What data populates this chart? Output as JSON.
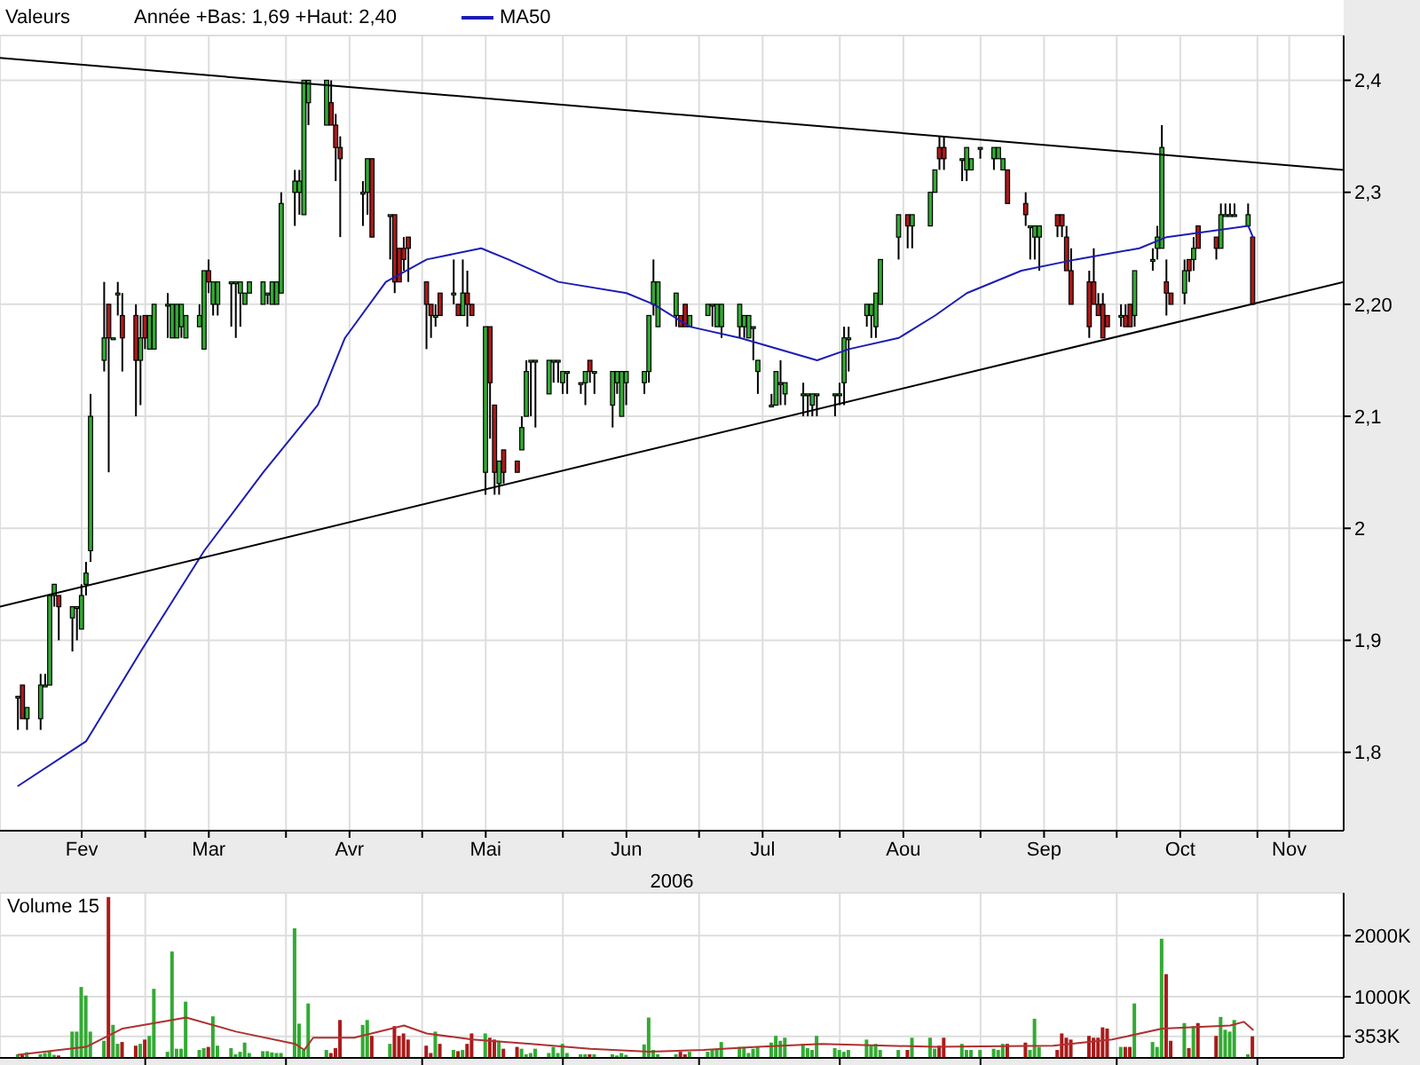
{
  "chart_data": [
    {
      "type": "candlestick",
      "title": "Valeurs",
      "subtitle": "Année +Bas: 1,69 +Haut: 2,40",
      "xlabel": "2006",
      "x": [
        "2006-02-01",
        "2006-02-02",
        "2006-02-03",
        "2006-02-06",
        "2006-02-07",
        "2006-02-08",
        "2006-02-09",
        "2006-02-10",
        "2006-02-13",
        "2006-02-14",
        "2006-02-15",
        "2006-02-16",
        "2006-02-17",
        "2006-02-20",
        "2006-02-21",
        "2006-02-22",
        "2006-02-23",
        "2006-02-24",
        "2006-02-27",
        "2006-02-28",
        "2006-03-01",
        "2006-03-02",
        "2006-03-03",
        "2006-03-06",
        "2006-03-07",
        "2006-03-08",
        "2006-03-09",
        "2006-03-10",
        "2006-03-13",
        "2006-03-14",
        "2006-03-15",
        "2006-03-16",
        "2006-03-17",
        "2006-03-20",
        "2006-03-21",
        "2006-03-22",
        "2006-03-23",
        "2006-03-24",
        "2006-03-27",
        "2006-03-28",
        "2006-03-29",
        "2006-03-30",
        "2006-03-31",
        "2006-04-03",
        "2006-04-04",
        "2006-04-05",
        "2006-04-06",
        "2006-04-10",
        "2006-04-11",
        "2006-04-12",
        "2006-04-13",
        "2006-04-18",
        "2006-04-19",
        "2006-04-20",
        "2006-04-24",
        "2006-04-25",
        "2006-04-26",
        "2006-04-27",
        "2006-04-28",
        "2006-05-02",
        "2006-05-03",
        "2006-05-04",
        "2006-05-05",
        "2006-05-08",
        "2006-05-09",
        "2006-05-10",
        "2006-05-11",
        "2006-05-12",
        "2006-05-15",
        "2006-05-16",
        "2006-05-17",
        "2006-05-18",
        "2006-05-19",
        "2006-05-22",
        "2006-05-23",
        "2006-05-24",
        "2006-05-25",
        "2006-05-26",
        "2006-05-29",
        "2006-05-30",
        "2006-05-31",
        "2006-06-01",
        "2006-06-02",
        "2006-06-05",
        "2006-06-06",
        "2006-06-07",
        "2006-06-08",
        "2006-06-12",
        "2006-06-13",
        "2006-06-14",
        "2006-06-15",
        "2006-06-19",
        "2006-06-20",
        "2006-06-21",
        "2006-06-22",
        "2006-06-26",
        "2006-06-27",
        "2006-06-28",
        "2006-06-29",
        "2006-07-03",
        "2006-07-04",
        "2006-07-05",
        "2006-07-06",
        "2006-07-10",
        "2006-07-11",
        "2006-07-12",
        "2006-07-13",
        "2006-07-14",
        "2006-07-17",
        "2006-07-18",
        "2006-07-19",
        "2006-07-20",
        "2006-07-24",
        "2006-07-25",
        "2006-07-26",
        "2006-07-27",
        "2006-07-31",
        "2006-08-01",
        "2006-08-02",
        "2006-08-03",
        "2006-08-07",
        "2006-08-08",
        "2006-08-09",
        "2006-08-10",
        "2006-08-14",
        "2006-08-16",
        "2006-08-17",
        "2006-08-21",
        "2006-08-22",
        "2006-08-23",
        "2006-08-24",
        "2006-08-28",
        "2006-08-29",
        "2006-08-30",
        "2006-09-01",
        "2006-09-04",
        "2006-09-05",
        "2006-09-06",
        "2006-09-07",
        "2006-09-11",
        "2006-09-12",
        "2006-09-13",
        "2006-09-14",
        "2006-09-18",
        "2006-09-19",
        "2006-09-20",
        "2006-09-21",
        "2006-09-25",
        "2006-09-26",
        "2006-09-27",
        "2006-09-28",
        "2006-09-29",
        "2006-10-02",
        "2006-10-03",
        "2006-10-04",
        "2006-10-05",
        "2006-10-09",
        "2006-10-10",
        "2006-10-11",
        "2006-10-12",
        "2006-10-13",
        "2006-10-16",
        "2006-10-17",
        "2006-10-18",
        "2006-10-19",
        "2006-10-23",
        "2006-10-24",
        "2006-10-25",
        "2006-10-26",
        "2006-10-27",
        "2006-10-30",
        "2006-10-31"
      ],
      "ohlc": [
        [
          1.85,
          1.85,
          1.82,
          1.85
        ],
        [
          1.86,
          1.86,
          1.83,
          1.83
        ],
        [
          1.83,
          1.84,
          1.82,
          1.84
        ],
        [
          1.83,
          1.87,
          1.82,
          1.86
        ],
        [
          1.86,
          1.87,
          1.86,
          1.86
        ],
        [
          1.86,
          1.94,
          1.86,
          1.94
        ],
        [
          1.94,
          1.95,
          1.93,
          1.95
        ],
        [
          1.94,
          1.94,
          1.9,
          1.93
        ],
        [
          1.92,
          1.93,
          1.89,
          1.93
        ],
        [
          1.93,
          1.93,
          1.9,
          1.93
        ],
        [
          1.91,
          1.95,
          1.91,
          1.94
        ],
        [
          1.95,
          1.97,
          1.94,
          1.96
        ],
        [
          1.98,
          2.12,
          1.97,
          2.1
        ],
        [
          2.15,
          2.22,
          2.14,
          2.17
        ],
        [
          2.2,
          2.2,
          2.05,
          2.17
        ],
        [
          2.17,
          2.17,
          2.17,
          2.17
        ],
        [
          2.21,
          2.22,
          2.19,
          2.21
        ],
        [
          2.19,
          2.21,
          2.14,
          2.17
        ],
        [
          2.19,
          2.2,
          2.1,
          2.15
        ],
        [
          2.15,
          2.19,
          2.11,
          2.17
        ],
        [
          2.19,
          2.19,
          2.16,
          2.17
        ],
        [
          2.16,
          2.19,
          2.16,
          2.19
        ],
        [
          2.16,
          2.2,
          2.16,
          2.2
        ],
        [
          2.2,
          2.21,
          2.17,
          2.2
        ],
        [
          2.17,
          2.2,
          2.17,
          2.2
        ],
        [
          2.17,
          2.2,
          2.17,
          2.2
        ],
        [
          2.18,
          2.2,
          2.17,
          2.2
        ],
        [
          2.17,
          2.19,
          2.17,
          2.19
        ],
        [
          2.18,
          2.2,
          2.18,
          2.19
        ],
        [
          2.16,
          2.23,
          2.16,
          2.23
        ],
        [
          2.23,
          2.24,
          2.21,
          2.22
        ],
        [
          2.2,
          2.22,
          2.19,
          2.22
        ],
        [
          2.2,
          2.22,
          2.19,
          2.22
        ],
        [
          2.22,
          2.22,
          2.18,
          2.22
        ],
        [
          2.22,
          2.22,
          2.17,
          2.22
        ],
        [
          2.21,
          2.22,
          2.18,
          2.22
        ],
        [
          2.2,
          2.21,
          2.2,
          2.21
        ],
        [
          2.21,
          2.22,
          2.21,
          2.22
        ],
        [
          2.2,
          2.22,
          2.2,
          2.22
        ],
        [
          2.21,
          2.21,
          2.2,
          2.21
        ],
        [
          2.2,
          2.22,
          2.2,
          2.22
        ],
        [
          2.2,
          2.22,
          2.2,
          2.22
        ],
        [
          2.21,
          2.3,
          2.21,
          2.29
        ],
        [
          2.3,
          2.32,
          2.27,
          2.31
        ],
        [
          2.3,
          2.32,
          2.28,
          2.31
        ],
        [
          2.28,
          2.4,
          2.28,
          2.4
        ],
        [
          2.38,
          2.4,
          2.36,
          2.4
        ],
        [
          2.36,
          2.4,
          2.36,
          2.4
        ],
        [
          2.38,
          2.4,
          2.36,
          2.36
        ],
        [
          2.36,
          2.37,
          2.31,
          2.34
        ],
        [
          2.34,
          2.35,
          2.26,
          2.33
        ],
        [
          2.3,
          2.31,
          2.27,
          2.3
        ],
        [
          2.3,
          2.33,
          2.28,
          2.33
        ],
        [
          2.33,
          2.33,
          2.26,
          2.26
        ],
        [
          2.28,
          2.28,
          2.24,
          2.28
        ],
        [
          2.28,
          2.28,
          2.21,
          2.22
        ],
        [
          2.25,
          2.25,
          2.22,
          2.22
        ],
        [
          2.25,
          2.26,
          2.23,
          2.24
        ],
        [
          2.26,
          2.26,
          2.22,
          2.25
        ],
        [
          2.22,
          2.22,
          2.16,
          2.2
        ],
        [
          2.2,
          2.2,
          2.17,
          2.19
        ],
        [
          2.19,
          2.2,
          2.18,
          2.19
        ],
        [
          2.21,
          2.21,
          2.19,
          2.19
        ],
        [
          2.21,
          2.24,
          2.2,
          2.21
        ],
        [
          2.2,
          2.2,
          2.19,
          2.19
        ],
        [
          2.19,
          2.24,
          2.19,
          2.21
        ],
        [
          2.21,
          2.23,
          2.18,
          2.2
        ],
        [
          2.2,
          2.2,
          2.19,
          2.19
        ],
        [
          2.05,
          2.18,
          2.03,
          2.18
        ],
        [
          2.18,
          2.18,
          2.08,
          2.13
        ],
        [
          2.11,
          2.11,
          2.03,
          2.05
        ],
        [
          2.04,
          2.06,
          2.03,
          2.06
        ],
        [
          2.07,
          2.07,
          2.04,
          2.05
        ],
        [
          2.06,
          2.06,
          2.05,
          2.05
        ],
        [
          2.07,
          2.1,
          2.07,
          2.09
        ],
        [
          2.1,
          2.15,
          2.1,
          2.14
        ],
        [
          2.15,
          2.15,
          2.1,
          2.15
        ],
        [
          2.15,
          2.15,
          2.09,
          2.15
        ],
        [
          2.12,
          2.15,
          2.12,
          2.15
        ],
        [
          2.15,
          2.15,
          2.13,
          2.15
        ],
        [
          2.15,
          2.15,
          2.13,
          2.15
        ],
        [
          2.13,
          2.14,
          2.12,
          2.14
        ],
        [
          2.14,
          2.14,
          2.12,
          2.14
        ],
        [
          2.13,
          2.13,
          2.12,
          2.13
        ],
        [
          2.13,
          2.14,
          2.11,
          2.14
        ],
        [
          2.15,
          2.15,
          2.13,
          2.14
        ],
        [
          2.14,
          2.14,
          2.12,
          2.14
        ],
        [
          2.11,
          2.14,
          2.09,
          2.14
        ],
        [
          2.13,
          2.14,
          2.12,
          2.14
        ],
        [
          2.1,
          2.14,
          2.1,
          2.14
        ],
        [
          2.13,
          2.14,
          2.11,
          2.14
        ],
        [
          2.13,
          2.14,
          2.12,
          2.14
        ],
        [
          2.14,
          2.19,
          2.13,
          2.19
        ],
        [
          2.2,
          2.24,
          2.19,
          2.22
        ],
        [
          2.18,
          2.22,
          2.18,
          2.22
        ],
        [
          2.19,
          2.21,
          2.18,
          2.21
        ],
        [
          2.19,
          2.19,
          2.18,
          2.18
        ],
        [
          2.2,
          2.2,
          2.18,
          2.18
        ],
        [
          2.18,
          2.19,
          2.18,
          2.19
        ],
        [
          2.19,
          2.2,
          2.19,
          2.2
        ],
        [
          2.2,
          2.2,
          2.18,
          2.2
        ],
        [
          2.18,
          2.2,
          2.18,
          2.2
        ],
        [
          2.18,
          2.2,
          2.17,
          2.2
        ],
        [
          2.18,
          2.2,
          2.17,
          2.2
        ],
        [
          2.18,
          2.19,
          2.17,
          2.19
        ],
        [
          2.17,
          2.19,
          2.17,
          2.19
        ],
        [
          2.18,
          2.18,
          2.15,
          2.18
        ],
        [
          2.14,
          2.15,
          2.12,
          2.15
        ],
        [
          2.11,
          2.12,
          2.11,
          2.11
        ],
        [
          2.11,
          2.14,
          2.11,
          2.14
        ],
        [
          2.13,
          2.15,
          2.11,
          2.13
        ],
        [
          2.12,
          2.13,
          2.11,
          2.13
        ],
        [
          2.12,
          2.13,
          2.1,
          2.12
        ],
        [
          2.12,
          2.12,
          2.1,
          2.12
        ],
        [
          2.11,
          2.12,
          2.1,
          2.12
        ],
        [
          2.12,
          2.12,
          2.1,
          2.12
        ],
        [
          2.12,
          2.12,
          2.1,
          2.12
        ],
        [
          2.12,
          2.13,
          2.11,
          2.12
        ],
        [
          2.13,
          2.18,
          2.11,
          2.17
        ],
        [
          2.17,
          2.18,
          2.14,
          2.17
        ],
        [
          2.19,
          2.2,
          2.18,
          2.2
        ],
        [
          2.19,
          2.2,
          2.17,
          2.2
        ],
        [
          2.18,
          2.21,
          2.17,
          2.21
        ],
        [
          2.2,
          2.24,
          2.2,
          2.24
        ],
        [
          2.26,
          2.28,
          2.24,
          2.28
        ],
        [
          2.28,
          2.28,
          2.25,
          2.27
        ],
        [
          2.27,
          2.28,
          2.25,
          2.28
        ],
        [
          2.27,
          2.3,
          2.27,
          2.3
        ],
        [
          2.3,
          2.32,
          2.3,
          2.32
        ],
        [
          2.34,
          2.35,
          2.32,
          2.33
        ],
        [
          2.34,
          2.35,
          2.32,
          2.33
        ],
        [
          2.33,
          2.33,
          2.31,
          2.33
        ],
        [
          2.32,
          2.34,
          2.31,
          2.34
        ],
        [
          2.32,
          2.33,
          2.32,
          2.33
        ],
        [
          2.34,
          2.34,
          2.33,
          2.34
        ],
        [
          2.33,
          2.34,
          2.32,
          2.34
        ],
        [
          2.33,
          2.34,
          2.33,
          2.34
        ],
        [
          2.32,
          2.33,
          2.32,
          2.33
        ],
        [
          2.32,
          2.32,
          2.29,
          2.29
        ],
        [
          2.29,
          2.3,
          2.27,
          2.28
        ],
        [
          2.27,
          2.27,
          2.24,
          2.27
        ],
        [
          2.26,
          2.27,
          2.24,
          2.27
        ],
        [
          2.26,
          2.27,
          2.23,
          2.27
        ],
        [
          2.28,
          2.28,
          2.26,
          2.27
        ],
        [
          2.28,
          2.28,
          2.26,
          2.27
        ],
        [
          2.26,
          2.27,
          2.23,
          2.23
        ],
        [
          2.23,
          2.25,
          2.2,
          2.2
        ],
        [
          2.22,
          2.23,
          2.17,
          2.18
        ],
        [
          2.22,
          2.25,
          2.2,
          2.2
        ],
        [
          2.2,
          2.21,
          2.19,
          2.19
        ],
        [
          2.2,
          2.21,
          2.17,
          2.17
        ],
        [
          2.19,
          2.19,
          2.18,
          2.18
        ],
        [
          2.19,
          2.2,
          2.18,
          2.19
        ],
        [
          2.19,
          2.2,
          2.18,
          2.18
        ],
        [
          2.2,
          2.2,
          2.18,
          2.18
        ],
        [
          2.19,
          2.23,
          2.18,
          2.23
        ],
        [
          2.24,
          2.25,
          2.23,
          2.24
        ],
        [
          2.25,
          2.27,
          2.24,
          2.26
        ],
        [
          2.25,
          2.36,
          2.25,
          2.34
        ],
        [
          2.22,
          2.24,
          2.19,
          2.21
        ],
        [
          2.21,
          2.21,
          2.2,
          2.2
        ],
        [
          2.21,
          2.24,
          2.2,
          2.23
        ],
        [
          2.24,
          2.24,
          2.22,
          2.23
        ],
        [
          2.24,
          2.26,
          2.23,
          2.25
        ],
        [
          2.27,
          2.27,
          2.25,
          2.25
        ],
        [
          2.26,
          2.26,
          2.24,
          2.25
        ],
        [
          2.25,
          2.29,
          2.25,
          2.28
        ],
        [
          2.28,
          2.29,
          2.28,
          2.28
        ],
        [
          2.28,
          2.29,
          2.28,
          2.28
        ],
        [
          2.28,
          2.29,
          2.28,
          2.28
        ],
        [
          2.27,
          2.29,
          2.27,
          2.28
        ],
        [
          2.26,
          2.26,
          2.2,
          2.2
        ]
      ],
      "colors": [
        "#33aa33",
        "#aa1a1a",
        "#33aa33",
        "#33aa33",
        "#33aa33",
        "#33aa33",
        "#33aa33",
        "#aa1a1a",
        "#33aa33",
        "#33aa33",
        "#33aa33",
        "#33aa33",
        "#33aa33",
        "#33aa33",
        "#aa1a1a",
        "#33aa33",
        "#33aa33",
        "#aa1a1a",
        "#aa1a1a",
        "#33aa33",
        "#aa1a1a",
        "#33aa33",
        "#33aa33",
        "#33aa33",
        "#33aa33",
        "#33aa33",
        "#33aa33",
        "#33aa33",
        "#33aa33",
        "#33aa33",
        "#aa1a1a",
        "#33aa33",
        "#33aa33",
        "#33aa33",
        "#33aa33",
        "#33aa33",
        "#33aa33",
        "#33aa33",
        "#33aa33",
        "#33aa33",
        "#33aa33",
        "#33aa33",
        "#33aa33",
        "#33aa33",
        "#33aa33",
        "#33aa33",
        "#33aa33",
        "#33aa33",
        "#aa1a1a",
        "#aa1a1a",
        "#aa1a1a",
        "#33aa33",
        "#33aa33",
        "#aa1a1a",
        "#33aa33",
        "#aa1a1a",
        "#aa1a1a",
        "#aa1a1a",
        "#aa1a1a",
        "#aa1a1a",
        "#aa1a1a",
        "#33aa33",
        "#aa1a1a",
        "#33aa33",
        "#aa1a1a",
        "#33aa33",
        "#aa1a1a",
        "#aa1a1a",
        "#33aa33",
        "#aa1a1a",
        "#aa1a1a",
        "#33aa33",
        "#aa1a1a",
        "#aa1a1a",
        "#33aa33",
        "#33aa33",
        "#33aa33",
        "#33aa33",
        "#33aa33",
        "#33aa33",
        "#33aa33",
        "#33aa33",
        "#33aa33",
        "#33aa33",
        "#33aa33",
        "#aa1a1a",
        "#33aa33",
        "#33aa33",
        "#33aa33",
        "#33aa33",
        "#33aa33",
        "#33aa33",
        "#33aa33",
        "#33aa33",
        "#33aa33",
        "#33aa33",
        "#aa1a1a",
        "#aa1a1a",
        "#33aa33",
        "#33aa33",
        "#33aa33",
        "#33aa33",
        "#33aa33",
        "#33aa33",
        "#33aa33",
        "#33aa33",
        "#33aa33",
        "#33aa33",
        "#33aa33",
        "#33aa33",
        "#33aa33",
        "#33aa33",
        "#33aa33",
        "#33aa33",
        "#33aa33",
        "#33aa33",
        "#33aa33",
        "#33aa33",
        "#33aa33",
        "#33aa33",
        "#33aa33",
        "#33aa33",
        "#33aa33",
        "#33aa33",
        "#33aa33",
        "#aa1a1a",
        "#33aa33",
        "#33aa33",
        "#33aa33",
        "#aa1a1a",
        "#aa1a1a",
        "#33aa33",
        "#33aa33",
        "#33aa33",
        "#33aa33",
        "#33aa33",
        "#33aa33",
        "#33aa33",
        "#aa1a1a",
        "#aa1a1a",
        "#33aa33",
        "#33aa33",
        "#33aa33",
        "#aa1a1a",
        "#aa1a1a",
        "#aa1a1a",
        "#aa1a1a",
        "#aa1a1a",
        "#aa1a1a",
        "#aa1a1a",
        "#aa1a1a",
        "#aa1a1a",
        "#33aa33",
        "#aa1a1a",
        "#aa1a1a",
        "#33aa33",
        "#33aa33",
        "#33aa33",
        "#33aa33",
        "#aa1a1a",
        "#aa1a1a",
        "#33aa33",
        "#aa1a1a",
        "#33aa33",
        "#aa1a1a",
        "#aa1a1a",
        "#33aa33",
        "#33aa33",
        "#33aa33",
        "#33aa33",
        "#33aa33",
        "#aa1a1a"
      ],
      "series": [
        {
          "type": "line",
          "name": "MA50",
          "color": "#1c1cb4",
          "x": [
            "2006-02-01",
            "2006-02-16",
            "2006-02-28",
            "2006-03-14",
            "2006-03-27",
            "2006-04-08",
            "2006-04-14",
            "2006-04-23",
            "2006-05-02",
            "2006-05-14",
            "2006-05-20",
            "2006-05-31",
            "2006-06-15",
            "2006-06-21",
            "2006-06-29",
            "2006-07-10",
            "2006-07-27",
            "2006-08-03",
            "2006-08-14",
            "2006-08-22",
            "2006-08-29",
            "2006-09-10",
            "2006-09-22",
            "2006-10-06",
            "2006-10-12",
            "2006-10-30",
            "2006-10-31"
          ],
          "values": [
            1.77,
            1.81,
            1.89,
            1.98,
            2.05,
            2.11,
            2.17,
            2.22,
            2.24,
            2.25,
            2.24,
            2.22,
            2.21,
            2.2,
            2.18,
            2.17,
            2.15,
            2.16,
            2.17,
            2.19,
            2.21,
            2.23,
            2.24,
            2.25,
            2.26,
            2.27,
            2.26
          ]
        },
        {
          "type": "line",
          "color": "#000000",
          "x": [
            "2006-01-28",
            "2006-11-20"
          ],
          "values": [
            2.42,
            2.32
          ]
        },
        {
          "type": "line",
          "color": "#000000",
          "x": [
            "2006-01-28",
            "2006-11-20"
          ],
          "values": [
            1.93,
            2.22
          ]
        }
      ],
      "xlim": [
        "2006-01-28",
        "2006-11-20"
      ],
      "xticks": [
        {
          "value": "2006-02-15",
          "label": "Fev"
        },
        {
          "value": "2006-03-01",
          "label": null
        },
        {
          "value": "2006-03-15",
          "label": "Mar"
        },
        {
          "value": "2006-04-01",
          "label": null
        },
        {
          "value": "2006-04-15",
          "label": "Avr"
        },
        {
          "value": "2006-05-01",
          "label": null
        },
        {
          "value": "2006-05-15",
          "label": "Mai"
        },
        {
          "value": "2006-06-01",
          "label": null
        },
        {
          "value": "2006-06-15",
          "label": "Jun"
        },
        {
          "value": "2006-07-01",
          "label": null
        },
        {
          "value": "2006-07-15",
          "label": "Jul"
        },
        {
          "value": "2006-08-01",
          "label": null
        },
        {
          "value": "2006-08-15",
          "label": "Aou"
        },
        {
          "value": "2006-09-01",
          "label": null
        },
        {
          "value": "2006-09-15",
          "label": "Sep"
        },
        {
          "value": "2006-10-01",
          "label": null
        },
        {
          "value": "2006-10-15",
          "label": "Oct"
        },
        {
          "value": "2006-11-01",
          "label": null
        },
        {
          "value": "2006-11-08",
          "label": "Nov"
        }
      ],
      "ylim": [
        1.73,
        2.44
      ],
      "yticks": [
        {
          "value": 1.8,
          "label": "1,8"
        },
        {
          "value": 1.9,
          "label": "1,9"
        },
        {
          "value": 2,
          "label": "2"
        },
        {
          "value": 2.1,
          "label": "2,1"
        },
        {
          "value": 2.2,
          "label": "2,20"
        },
        {
          "value": 2.3,
          "label": "2,3"
        },
        {
          "value": 2.4,
          "label": "2,4"
        }
      ],
      "grid": true,
      "legend": "top left"
    },
    {
      "type": "bar",
      "title": "Volume 15",
      "x": [
        "2006-02-01",
        "2006-02-02",
        "2006-02-03",
        "2006-02-06",
        "2006-02-07",
        "2006-02-08",
        "2006-02-09",
        "2006-02-10",
        "2006-02-13",
        "2006-02-14",
        "2006-02-15",
        "2006-02-16",
        "2006-02-17",
        "2006-02-20",
        "2006-02-21",
        "2006-02-22",
        "2006-02-23",
        "2006-02-24",
        "2006-02-27",
        "2006-02-28",
        "2006-03-01",
        "2006-03-02",
        "2006-03-03",
        "2006-03-06",
        "2006-03-07",
        "2006-03-08",
        "2006-03-09",
        "2006-03-10",
        "2006-03-13",
        "2006-03-14",
        "2006-03-15",
        "2006-03-16",
        "2006-03-17",
        "2006-03-20",
        "2006-03-21",
        "2006-03-22",
        "2006-03-23",
        "2006-03-24",
        "2006-03-27",
        "2006-03-28",
        "2006-03-29",
        "2006-03-30",
        "2006-03-31",
        "2006-04-03",
        "2006-04-04",
        "2006-04-05",
        "2006-04-06",
        "2006-04-10",
        "2006-04-11",
        "2006-04-12",
        "2006-04-13",
        "2006-04-18",
        "2006-04-19",
        "2006-04-20",
        "2006-04-24",
        "2006-04-25",
        "2006-04-26",
        "2006-04-27",
        "2006-04-28",
        "2006-05-02",
        "2006-05-03",
        "2006-05-04",
        "2006-05-05",
        "2006-05-08",
        "2006-05-09",
        "2006-05-10",
        "2006-05-11",
        "2006-05-12",
        "2006-05-15",
        "2006-05-16",
        "2006-05-17",
        "2006-05-18",
        "2006-05-19",
        "2006-05-22",
        "2006-05-23",
        "2006-05-24",
        "2006-05-25",
        "2006-05-26",
        "2006-05-29",
        "2006-05-30",
        "2006-05-31",
        "2006-06-01",
        "2006-06-02",
        "2006-06-05",
        "2006-06-06",
        "2006-06-07",
        "2006-06-08",
        "2006-06-12",
        "2006-06-13",
        "2006-06-14",
        "2006-06-15",
        "2006-06-19",
        "2006-06-20",
        "2006-06-21",
        "2006-06-22",
        "2006-06-26",
        "2006-06-27",
        "2006-06-28",
        "2006-06-29",
        "2006-07-03",
        "2006-07-04",
        "2006-07-05",
        "2006-07-06",
        "2006-07-10",
        "2006-07-11",
        "2006-07-12",
        "2006-07-13",
        "2006-07-14",
        "2006-07-17",
        "2006-07-18",
        "2006-07-19",
        "2006-07-20",
        "2006-07-24",
        "2006-07-25",
        "2006-07-26",
        "2006-07-27",
        "2006-07-31",
        "2006-08-01",
        "2006-08-02",
        "2006-08-03",
        "2006-08-07",
        "2006-08-08",
        "2006-08-09",
        "2006-08-10",
        "2006-08-14",
        "2006-08-16",
        "2006-08-17",
        "2006-08-21",
        "2006-08-22",
        "2006-08-23",
        "2006-08-24",
        "2006-08-28",
        "2006-08-29",
        "2006-08-30",
        "2006-09-01",
        "2006-09-04",
        "2006-09-05",
        "2006-09-06",
        "2006-09-07",
        "2006-09-11",
        "2006-09-12",
        "2006-09-13",
        "2006-09-14",
        "2006-09-18",
        "2006-09-19",
        "2006-09-20",
        "2006-09-21",
        "2006-09-25",
        "2006-09-26",
        "2006-09-27",
        "2006-09-28",
        "2006-09-29",
        "2006-10-02",
        "2006-10-03",
        "2006-10-04",
        "2006-10-05",
        "2006-10-09",
        "2006-10-10",
        "2006-10-11",
        "2006-10-12",
        "2006-10-13",
        "2006-10-16",
        "2006-10-17",
        "2006-10-18",
        "2006-10-19",
        "2006-10-23",
        "2006-10-24",
        "2006-10-25",
        "2006-10-26",
        "2006-10-27",
        "2006-10-30",
        "2006-10-31"
      ],
      "values": [
        60,
        50,
        90,
        60,
        80,
        110,
        50,
        40,
        430,
        430,
        1160,
        1020,
        430,
        280,
        2630,
        540,
        230,
        260,
        200,
        230,
        300,
        360,
        1130,
        100,
        1740,
        150,
        150,
        920,
        130,
        160,
        180,
        680,
        200,
        160,
        60,
        100,
        250,
        80,
        110,
        110,
        90,
        80,
        80,
        2120,
        560,
        130,
        890,
        130,
        80,
        160,
        620,
        540,
        620,
        360,
        230,
        520,
        360,
        400,
        300,
        200,
        80,
        430,
        230,
        130,
        110,
        130,
        230,
        400,
        400,
        330,
        300,
        280,
        150,
        180,
        150,
        60,
        80,
        150,
        80,
        180,
        80,
        230,
        80,
        60,
        60,
        60,
        60,
        60,
        40,
        80,
        50,
        220,
        660,
        130,
        60,
        60,
        100,
        60,
        100,
        100,
        130,
        150,
        260,
        180,
        180,
        80,
        150,
        180,
        250,
        360,
        280,
        330,
        230,
        160,
        130,
        360,
        160,
        130,
        100,
        130,
        300,
        200,
        230,
        130,
        130,
        130,
        330,
        330,
        150,
        200,
        330,
        230,
        130,
        130,
        130,
        150,
        130,
        230,
        230,
        250,
        130,
        640,
        180,
        130,
        400,
        330,
        300,
        360,
        330,
        330,
        500,
        480,
        180,
        180,
        180,
        890,
        260,
        180,
        1950,
        1370,
        280,
        570,
        160,
        520,
        570,
        360,
        670,
        460,
        430,
        620,
        60,
        353
      ],
      "colors": [
        "#33aa33",
        "#aa1a1a",
        "#33aa33",
        "#33aa33",
        "#33aa33",
        "#33aa33",
        "#33aa33",
        "#aa1a1a",
        "#33aa33",
        "#33aa33",
        "#33aa33",
        "#33aa33",
        "#33aa33",
        "#33aa33",
        "#aa1a1a",
        "#33aa33",
        "#33aa33",
        "#aa1a1a",
        "#aa1a1a",
        "#33aa33",
        "#aa1a1a",
        "#33aa33",
        "#33aa33",
        "#33aa33",
        "#33aa33",
        "#33aa33",
        "#33aa33",
        "#33aa33",
        "#33aa33",
        "#33aa33",
        "#aa1a1a",
        "#33aa33",
        "#33aa33",
        "#33aa33",
        "#33aa33",
        "#33aa33",
        "#33aa33",
        "#33aa33",
        "#33aa33",
        "#33aa33",
        "#33aa33",
        "#33aa33",
        "#33aa33",
        "#33aa33",
        "#33aa33",
        "#33aa33",
        "#33aa33",
        "#33aa33",
        "#aa1a1a",
        "#aa1a1a",
        "#aa1a1a",
        "#33aa33",
        "#33aa33",
        "#aa1a1a",
        "#33aa33",
        "#aa1a1a",
        "#aa1a1a",
        "#aa1a1a",
        "#aa1a1a",
        "#aa1a1a",
        "#aa1a1a",
        "#33aa33",
        "#aa1a1a",
        "#33aa33",
        "#aa1a1a",
        "#33aa33",
        "#aa1a1a",
        "#aa1a1a",
        "#33aa33",
        "#aa1a1a",
        "#aa1a1a",
        "#33aa33",
        "#aa1a1a",
        "#aa1a1a",
        "#33aa33",
        "#33aa33",
        "#33aa33",
        "#33aa33",
        "#33aa33",
        "#33aa33",
        "#33aa33",
        "#33aa33",
        "#33aa33",
        "#33aa33",
        "#33aa33",
        "#aa1a1a",
        "#33aa33",
        "#33aa33",
        "#33aa33",
        "#33aa33",
        "#33aa33",
        "#33aa33",
        "#33aa33",
        "#33aa33",
        "#33aa33",
        "#33aa33",
        "#aa1a1a",
        "#aa1a1a",
        "#33aa33",
        "#33aa33",
        "#33aa33",
        "#33aa33",
        "#33aa33",
        "#33aa33",
        "#33aa33",
        "#33aa33",
        "#33aa33",
        "#33aa33",
        "#33aa33",
        "#33aa33",
        "#33aa33",
        "#33aa33",
        "#33aa33",
        "#33aa33",
        "#33aa33",
        "#33aa33",
        "#33aa33",
        "#33aa33",
        "#33aa33",
        "#33aa33",
        "#33aa33",
        "#33aa33",
        "#33aa33",
        "#33aa33",
        "#33aa33",
        "#aa1a1a",
        "#33aa33",
        "#33aa33",
        "#33aa33",
        "#aa1a1a",
        "#aa1a1a",
        "#33aa33",
        "#33aa33",
        "#33aa33",
        "#33aa33",
        "#33aa33",
        "#33aa33",
        "#33aa33",
        "#aa1a1a",
        "#aa1a1a",
        "#33aa33",
        "#33aa33",
        "#33aa33",
        "#aa1a1a",
        "#aa1a1a",
        "#aa1a1a",
        "#aa1a1a",
        "#aa1a1a",
        "#aa1a1a",
        "#aa1a1a",
        "#aa1a1a",
        "#aa1a1a",
        "#33aa33",
        "#aa1a1a",
        "#aa1a1a",
        "#33aa33",
        "#33aa33",
        "#33aa33",
        "#33aa33",
        "#aa1a1a",
        "#aa1a1a",
        "#33aa33",
        "#aa1a1a",
        "#33aa33",
        "#aa1a1a",
        "#aa1a1a",
        "#33aa33",
        "#33aa33",
        "#33aa33",
        "#33aa33",
        "#33aa33",
        "#aa1a1a"
      ],
      "series": [
        {
          "type": "line",
          "color": "#b03030",
          "x": [
            "2006-02-01",
            "2006-02-16",
            "2006-02-24",
            "2006-03-07",
            "2006-03-10",
            "2006-03-21",
            "2006-04-03",
            "2006-04-05",
            "2006-04-07",
            "2006-04-16",
            "2006-04-27",
            "2006-05-02",
            "2006-05-12",
            "2006-05-25",
            "2006-06-07",
            "2006-06-20",
            "2006-07-02",
            "2006-07-14",
            "2006-07-28",
            "2006-08-22",
            "2006-09-17",
            "2006-09-30",
            "2006-10-11",
            "2006-10-26",
            "2006-10-29",
            "2006-10-31"
          ],
          "values": [
            50,
            180,
            480,
            620,
            660,
            430,
            230,
            130,
            330,
            330,
            530,
            400,
            300,
            230,
            150,
            100,
            130,
            180,
            230,
            180,
            200,
            300,
            480,
            530,
            590,
            460
          ]
        }
      ],
      "xlim": [
        "2006-01-28",
        "2006-11-20"
      ],
      "xticks": [
        {
          "value": "2006-03-01",
          "label": null
        },
        {
          "value": "2006-04-01",
          "label": null
        },
        {
          "value": "2006-05-01",
          "label": null
        },
        {
          "value": "2006-06-01",
          "label": null
        },
        {
          "value": "2006-07-01",
          "label": null
        },
        {
          "value": "2006-08-01",
          "label": null
        },
        {
          "value": "2006-09-01",
          "label": null
        },
        {
          "value": "2006-10-01",
          "label": null
        },
        {
          "value": "2006-11-01",
          "label": null
        }
      ],
      "ylim": [
        0,
        2700
      ],
      "yticks": [
        {
          "value": 353,
          "label": "353K"
        },
        {
          "value": 1000,
          "label": "1000K"
        },
        {
          "value": 2000,
          "label": "2000K"
        }
      ],
      "grid": true,
      "tick_labels": "y"
    }
  ]
}
